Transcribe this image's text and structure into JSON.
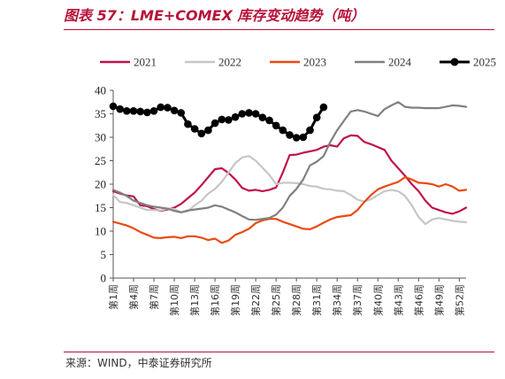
{
  "title": "图表 57：LME+COMEX 库存变动趋势（吨）",
  "source": "来源：WIND，中泰证券研究所",
  "chart_data": {
    "type": "line",
    "title": "图表 57：LME+COMEX 库存变动趋势（吨）",
    "xlabel": "",
    "ylabel": "",
    "ylim": [
      0,
      40
    ],
    "yticks": [
      0,
      5,
      10,
      15,
      20,
      25,
      30,
      35,
      40
    ],
    "xrange": [
      1,
      53
    ],
    "x_tick_labels": [
      "第1周",
      "第4周",
      "第7周",
      "第10周",
      "第13周",
      "第16周",
      "第19周",
      "第22周",
      "第25周",
      "第28周",
      "第31周",
      "第34周",
      "第37周",
      "第40周",
      "第43周",
      "第46周",
      "第49周",
      "第52周"
    ],
    "legend_position": "top",
    "grid": false,
    "series": [
      {
        "name": "2021",
        "color": "#c0134a",
        "marker": false,
        "values": [
          18.5,
          18.0,
          17.6,
          17.4,
          15.5,
          15.3,
          14.7,
          14.3,
          14.6,
          15.0,
          15.8,
          17.0,
          18.2,
          19.8,
          21.5,
          23.2,
          23.4,
          22.4,
          21.0,
          19.2,
          18.6,
          18.8,
          18.5,
          18.8,
          19.3,
          22.5,
          26.2,
          26.3,
          26.7,
          27.0,
          27.3,
          28.0,
          28.3,
          28.0,
          29.8,
          30.4,
          30.3,
          29.0,
          28.5,
          27.9,
          27.3,
          25.0,
          23.4,
          21.8,
          20.0,
          18.5,
          16.5,
          15.0,
          14.5,
          14.0,
          13.7,
          14.2,
          15.0
        ]
      },
      {
        "name": "2022",
        "color": "#c6c6c6",
        "marker": false,
        "values": [
          17.7,
          16.2,
          16.0,
          15.5,
          15.0,
          14.5,
          14.5,
          14.4,
          14.8,
          14.7,
          14.0,
          14.2,
          15.5,
          16.5,
          18.0,
          19.0,
          20.5,
          22.5,
          24.5,
          25.7,
          26.0,
          25.0,
          23.5,
          22.0,
          20.0,
          20.3,
          20.3,
          20.2,
          20.0,
          19.6,
          19.5,
          19.0,
          18.9,
          18.6,
          18.5,
          17.7,
          16.7,
          16.3,
          16.8,
          17.7,
          18.5,
          18.8,
          18.5,
          17.5,
          15.5,
          13.0,
          11.5,
          12.5,
          12.8,
          12.5,
          12.2,
          12.0,
          11.9
        ]
      },
      {
        "name": "2023",
        "color": "#ea4a12",
        "marker": false,
        "values": [
          12.0,
          11.6,
          11.2,
          10.6,
          9.8,
          9.2,
          8.6,
          8.5,
          8.7,
          8.8,
          8.5,
          8.9,
          8.9,
          8.6,
          8.1,
          8.4,
          7.5,
          8.0,
          9.2,
          9.8,
          10.5,
          11.7,
          12.3,
          12.6,
          12.6,
          12.0,
          11.5,
          11.0,
          10.5,
          10.4,
          11.0,
          11.8,
          12.5,
          13.0,
          13.2,
          13.4,
          14.5,
          16.2,
          17.7,
          18.9,
          19.5,
          20.0,
          20.5,
          21.5,
          21.0,
          20.3,
          20.2,
          20.0,
          19.5,
          20.0,
          19.5,
          18.6,
          18.8
        ]
      },
      {
        "name": "2024",
        "color": "#808080",
        "marker": false,
        "values": [
          18.8,
          18.2,
          17.5,
          16.5,
          16.0,
          15.5,
          15.2,
          15.0,
          14.8,
          14.3,
          14.0,
          14.4,
          14.6,
          14.8,
          15.0,
          15.5,
          15.2,
          14.6,
          14.0,
          13.2,
          12.5,
          12.4,
          12.6,
          12.8,
          13.5,
          15.0,
          17.5,
          19.0,
          21.0,
          24.0,
          24.8,
          26.0,
          29.0,
          31.5,
          33.5,
          35.5,
          35.8,
          35.5,
          35.0,
          34.5,
          36.0,
          36.8,
          37.5,
          36.5,
          36.3,
          36.3,
          36.2,
          36.2,
          36.2,
          36.5,
          36.8,
          36.7,
          36.5
        ]
      },
      {
        "name": "2025",
        "color": "#000000",
        "marker": true,
        "values": [
          36.6,
          36.0,
          35.6,
          35.6,
          35.5,
          35.3,
          35.6,
          36.4,
          36.3,
          35.7,
          35.2,
          32.8,
          31.8,
          30.8,
          31.5,
          33.0,
          33.8,
          33.7,
          34.3,
          35.0,
          35.2,
          35.0,
          34.2,
          33.6,
          32.5,
          31.5,
          30.5,
          29.9,
          30.0,
          31.5,
          34.2,
          36.4
        ]
      }
    ]
  }
}
